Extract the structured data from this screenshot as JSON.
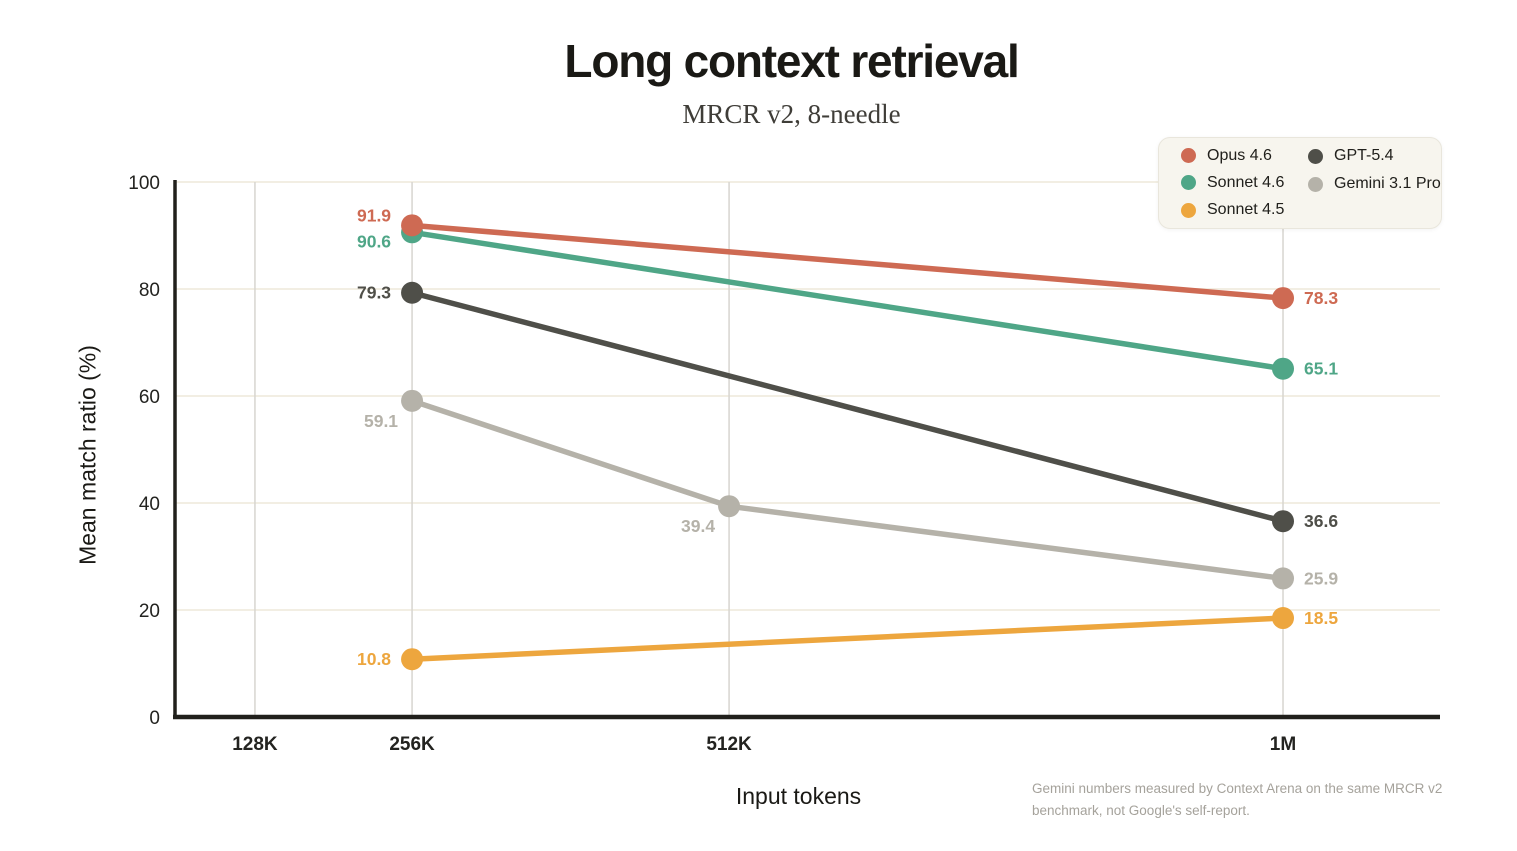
{
  "chart_data": {
    "type": "line",
    "title": "Long context retrieval",
    "subtitle": "MRCR v2, 8-needle",
    "xlabel": "Input tokens",
    "ylabel": "Mean match ratio (%)",
    "ylim": [
      0,
      100
    ],
    "y_ticks": [
      0,
      20,
      40,
      60,
      80,
      100
    ],
    "x_ticks": [
      {
        "value": 128,
        "label": "128K"
      },
      {
        "value": 256,
        "label": "256K"
      },
      {
        "value": 512,
        "label": "512K"
      },
      {
        "value": 1024,
        "label": "1M"
      }
    ],
    "grid": true,
    "legend_position": "top-right",
    "series": [
      {
        "name": "Opus 4.6",
        "color": "#ce6a53",
        "points": [
          {
            "x": 256,
            "y": 91.9,
            "label": "91.9",
            "label_pos": "left",
            "label_dy": -10
          },
          {
            "x": 1024,
            "y": 78.3,
            "label": "78.3",
            "label_pos": "right"
          }
        ]
      },
      {
        "name": "Sonnet 4.6",
        "color": "#4fa687",
        "points": [
          {
            "x": 256,
            "y": 90.6,
            "label": "90.6",
            "label_pos": "left",
            "label_dy": 9
          },
          {
            "x": 1024,
            "y": 65.1,
            "label": "65.1",
            "label_pos": "right"
          }
        ]
      },
      {
        "name": "Sonnet 4.5",
        "color": "#eda63e",
        "points": [
          {
            "x": 256,
            "y": 10.8,
            "label": "10.8",
            "label_pos": "left"
          },
          {
            "x": 1024,
            "y": 18.5,
            "label": "18.5",
            "label_pos": "right"
          }
        ]
      },
      {
        "name": "GPT-5.4",
        "color": "#4f4f49",
        "points": [
          {
            "x": 256,
            "y": 79.3,
            "label": "79.3",
            "label_pos": "left"
          },
          {
            "x": 1024,
            "y": 36.6,
            "label": "36.6",
            "label_pos": "right"
          }
        ]
      },
      {
        "name": "Gemini 3.1 Pro",
        "color": "#b5b2a9",
        "points": [
          {
            "x": 256,
            "y": 59.1,
            "label": "59.1",
            "label_pos": "below-left"
          },
          {
            "x": 512,
            "y": 39.4,
            "label": "39.4",
            "label_pos": "below-left"
          },
          {
            "x": 1024,
            "y": 25.9,
            "label": "25.9",
            "label_pos": "right"
          }
        ]
      }
    ]
  },
  "footnote": {
    "text": "Gemini numbers measured by Context Arena on the same MRCR v2 benchmark, not Google's self-report."
  },
  "colors": {
    "background": "#ffffff",
    "axis": "#21201c",
    "grid_horizontal": "#f2eee3",
    "grid_vertical": "#d7d5d0",
    "title_text": "#1a1915",
    "subtitle_text": "#3f3d38",
    "tick_text": "#232320",
    "footnote_text": "#a5a29b",
    "legend_background": "#f7f5ee",
    "legend_border": "#e9e6dc"
  }
}
